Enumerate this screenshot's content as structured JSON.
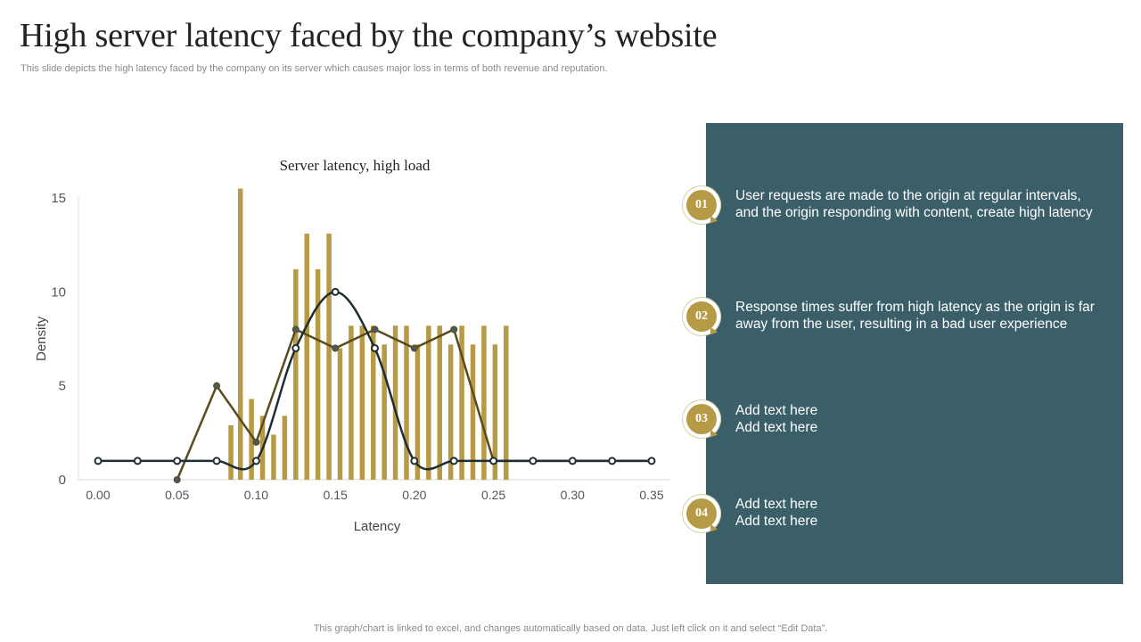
{
  "slide": {
    "title": "High server latency faced by the company’s website",
    "subtitle": "This slide depicts the high latency faced by the company on its server which causes major loss in terms of both revenue and reputation.",
    "footer": "This graph/chart is linked to excel, and changes automatically based on data. Just left click on it and select “Edit Data”."
  },
  "colors": {
    "bar": "#b79a45",
    "series_brown": "#5a4a1f",
    "series_dark": "#1f2e33",
    "panel": "#3a5f69",
    "badge": "#b79a45"
  },
  "points": [
    {
      "number": "01",
      "lines": [
        "User requests are made to the origin at regular intervals,",
        "and the origin responding with content, create high latency"
      ]
    },
    {
      "number": "02",
      "lines": [
        "Response times suffer from high latency as the origin is far",
        "away from the user, resulting in a bad user experience"
      ]
    },
    {
      "number": "03",
      "lines": [
        "Add text here",
        "Add text here"
      ]
    },
    {
      "number": "04",
      "lines": [
        "Add text here",
        "Add text here"
      ]
    }
  ],
  "chart_data": {
    "type": "bar",
    "title": "Server latency, high load",
    "xlabel": "Latency",
    "ylabel": "Density",
    "xlim": [
      0.0,
      0.35
    ],
    "ylim": [
      0,
      15
    ],
    "x_ticks": [
      "0.00",
      "0.05",
      "0.10",
      "0.15",
      "0.20",
      "0.25",
      "0.30",
      "0.35"
    ],
    "y_ticks": [
      "0",
      "5",
      "10",
      "15"
    ],
    "grid": false,
    "legend": "none",
    "bars": {
      "x": [
        0.084,
        0.09,
        0.097,
        0.104,
        0.111,
        0.118,
        0.125,
        0.132,
        0.139,
        0.146,
        0.153,
        0.16,
        0.167,
        0.174,
        0.181,
        0.188,
        0.195,
        0.202,
        0.209,
        0.216,
        0.223,
        0.23,
        0.237,
        0.244,
        0.251,
        0.258
      ],
      "values": [
        2.9,
        15.5,
        4.3,
        3.4,
        2.4,
        3.4,
        11.2,
        13.1,
        11.2,
        13.1,
        7.0,
        8.2,
        8.2,
        8.2,
        7.2,
        8.2,
        8.2,
        7.2,
        8.2,
        8.2,
        7.2,
        8.2,
        7.2,
        8.2,
        7.2,
        8.2
      ]
    },
    "series": [
      {
        "type": "line",
        "x": [
          0.05,
          0.075,
          0.1,
          0.125,
          0.15,
          0.175,
          0.2,
          0.225,
          0.25,
          0.275,
          0.3,
          0.325,
          0.35
        ],
        "values": [
          0,
          5,
          2,
          8,
          7,
          8,
          7,
          8,
          1,
          1,
          1,
          1,
          1
        ]
      },
      {
        "type": "smooth",
        "x": [
          0.0,
          0.025,
          0.05,
          0.075,
          0.1,
          0.125,
          0.15,
          0.175,
          0.2,
          0.225,
          0.25,
          0.275,
          0.3,
          0.325,
          0.35
        ],
        "values": [
          1,
          1,
          1,
          1,
          1,
          7,
          10,
          7,
          1,
          1,
          1,
          1,
          1,
          1,
          1
        ]
      }
    ]
  }
}
